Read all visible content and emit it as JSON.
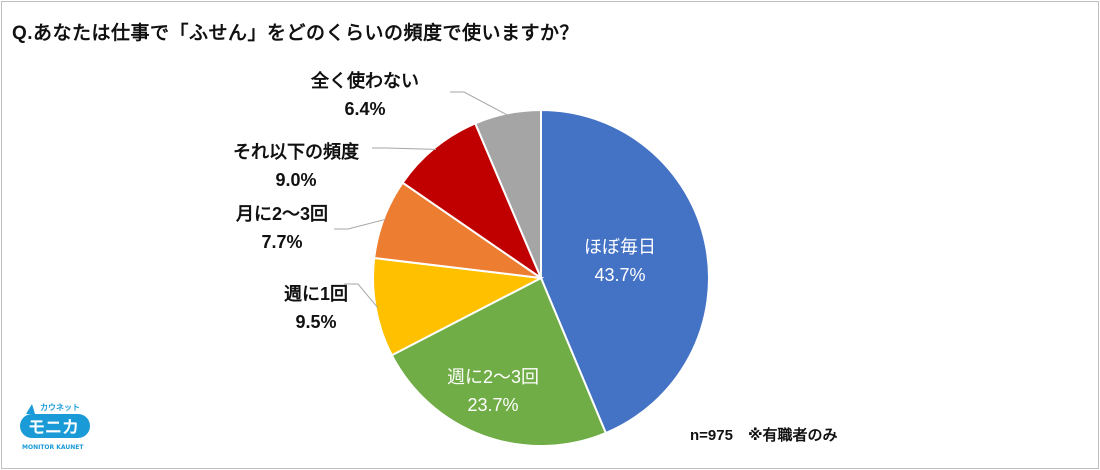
{
  "title": "Q.あなたは仕事で「ふせん」をどのくらいの頻度で使いますか？",
  "note": "n=975　※有職者のみ",
  "logo": {
    "top": "カウネット",
    "main": "モニカ",
    "bottom": "MONITOR KAUNET",
    "color": "#1a9ad6"
  },
  "chart_data": {
    "type": "pie",
    "title": "Q.あなたは仕事で「ふせん」をどのくらいの頻度で使いますか？",
    "start": "top, clockwise",
    "slices": [
      {
        "label": "ほぼ毎日",
        "value": 43.7,
        "display": "43.7%",
        "color": "#4472C4"
      },
      {
        "label": "週に2～3回",
        "value": 23.7,
        "display": "23.7%",
        "color": "#70AD47"
      },
      {
        "label": "週に1回",
        "value": 9.5,
        "display": "9.5%",
        "color": "#FFC000"
      },
      {
        "label": "月に2～3回",
        "value": 7.7,
        "display": "7.7%",
        "color": "#ED7D31"
      },
      {
        "label": "それ以下の頻度",
        "value": 9.0,
        "display": "9.0%",
        "color": "#C00000"
      },
      {
        "label": "全く使わない",
        "value": 6.4,
        "display": "6.4%",
        "color": "#A5A5A5"
      }
    ]
  }
}
